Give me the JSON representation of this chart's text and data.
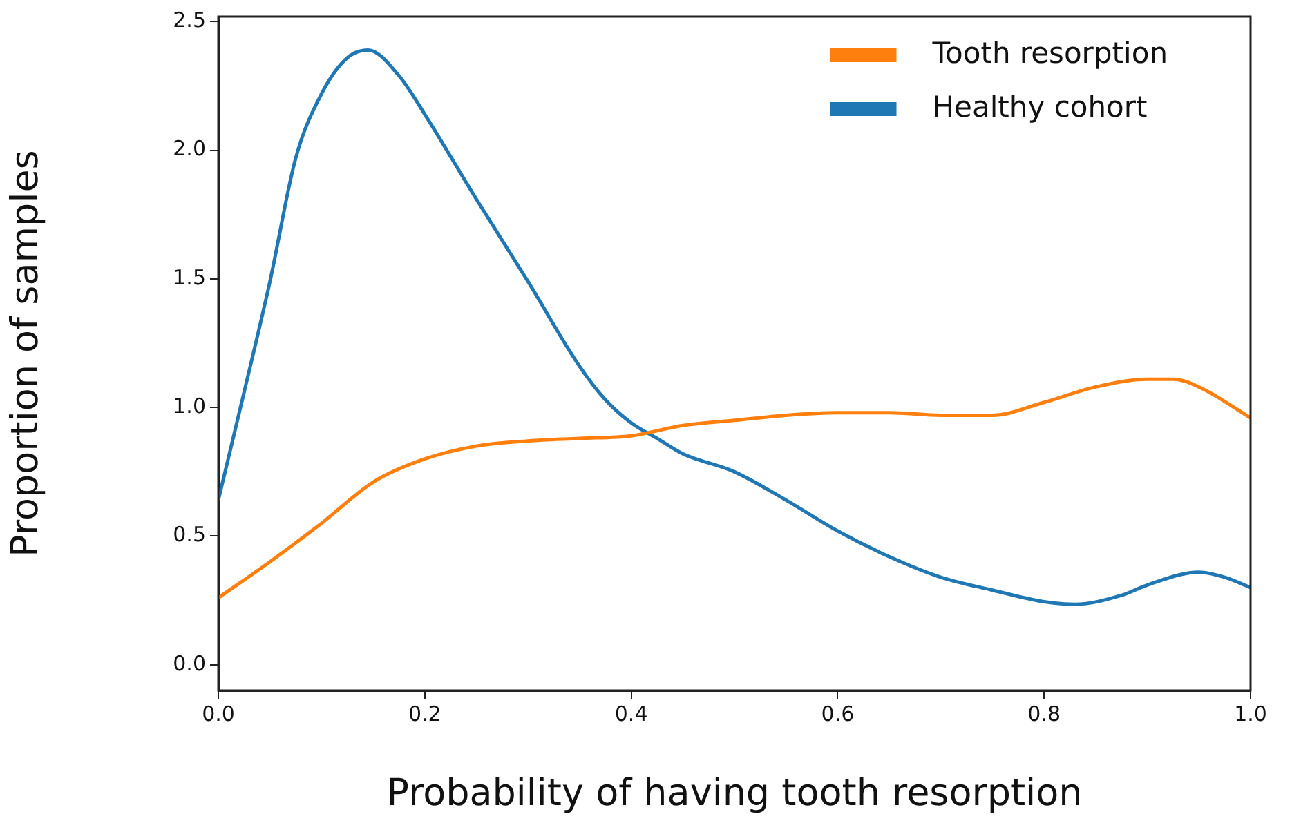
{
  "chart_data": {
    "type": "line",
    "xlabel": "Probability of having tooth resorption",
    "ylabel": "Proportion of samples",
    "xlim": [
      0,
      1
    ],
    "ylim": [
      -0.1,
      2.52
    ],
    "xticks": [
      {
        "value": 0,
        "label": "0.0"
      },
      {
        "value": 0.2,
        "label": "0.2"
      },
      {
        "value": 0.4,
        "label": "0.4"
      },
      {
        "value": 0.6,
        "label": "0.6"
      },
      {
        "value": 0.8,
        "label": "0.8"
      },
      {
        "value": 1,
        "label": "1.0"
      }
    ],
    "yticks": [
      {
        "value": 0,
        "label": "0.0"
      },
      {
        "value": 0.5,
        "label": "0.5"
      },
      {
        "value": 1,
        "label": "1.0"
      },
      {
        "value": 1.5,
        "label": "1.5"
      },
      {
        "value": 2,
        "label": "2.0"
      },
      {
        "value": 2.5,
        "label": "2.5"
      }
    ],
    "grid": false,
    "legend": "top right",
    "marker": "none",
    "line_style": "solid",
    "series": [
      {
        "name": "Tooth resorption",
        "color": "#ff7f0e",
        "x": [
          0,
          0.05,
          0.1,
          0.15,
          0.2,
          0.25,
          0.3,
          0.35,
          0.4,
          0.45,
          0.5,
          0.55,
          0.6,
          0.65,
          0.7,
          0.75,
          0.8,
          0.85,
          0.9,
          0.925,
          0.95,
          1
        ],
        "values": [
          0.26,
          0.4,
          0.55,
          0.71,
          0.8,
          0.85,
          0.87,
          0.88,
          0.89,
          0.93,
          0.95,
          0.97,
          0.98,
          0.98,
          0.97,
          0.97,
          1.02,
          1.08,
          1.11,
          1.11,
          1.08,
          0.96
        ]
      },
      {
        "name": "Healthy cohort",
        "color": "#1f77b4",
        "x": [
          0,
          0.025,
          0.05,
          0.075,
          0.1,
          0.125,
          0.145,
          0.175,
          0.2,
          0.25,
          0.3,
          0.35,
          0.375,
          0.4,
          0.425,
          0.45,
          0.5,
          0.55,
          0.6,
          0.65,
          0.7,
          0.75,
          0.8,
          0.83,
          0.875,
          0.9,
          0.95,
          0.975,
          1
        ],
        "values": [
          0.64,
          1.06,
          1.49,
          1.97,
          2.22,
          2.36,
          2.39,
          2.29,
          2.14,
          1.81,
          1.49,
          1.16,
          1.03,
          0.94,
          0.88,
          0.82,
          0.75,
          0.64,
          0.52,
          0.42,
          0.34,
          0.29,
          0.245,
          0.235,
          0.27,
          0.31,
          0.36,
          0.34,
          0.3
        ]
      }
    ]
  }
}
